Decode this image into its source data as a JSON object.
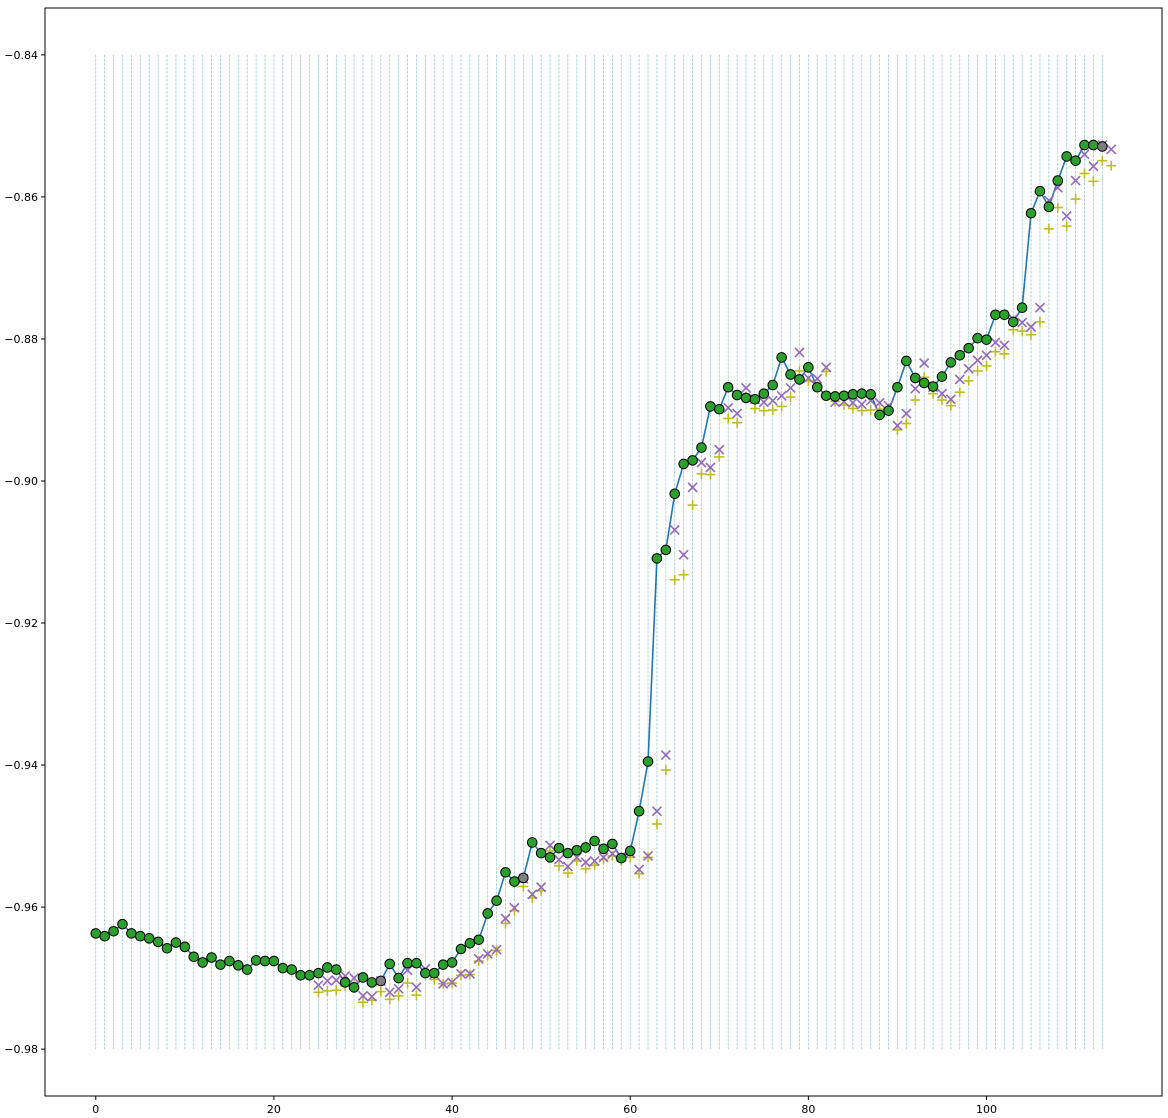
{
  "chart_data": {
    "type": "scatter",
    "title": "",
    "xlabel": "",
    "ylabel": "",
    "xlim": [
      -5.7,
      119.7
    ],
    "ylim": [
      -0.9866,
      -0.8334
    ],
    "x_ticks": [
      0,
      20,
      40,
      60,
      80,
      100
    ],
    "x_tick_labels": [
      "0",
      "20",
      "40",
      "60",
      "80",
      "100"
    ],
    "y_ticks": [
      -0.84,
      -0.86,
      -0.88,
      -0.9,
      -0.92,
      -0.94,
      -0.96,
      -0.98
    ],
    "y_tick_labels": [
      "−0.84",
      "−0.86",
      "−0.88",
      "−0.90",
      "−0.92",
      "−0.94",
      "−0.96",
      "−0.98"
    ],
    "grid": "vertical dashed lines at every integer x from 0 to 113, spanning y -0.98 to -0.84",
    "vline_range": {
      "x_start": 0,
      "x_end": 113,
      "y_low": -0.98,
      "y_high": -0.84
    },
    "colors": {
      "line": "#1f77b4",
      "circle_fill": "#2ca02c",
      "circle_gray": "#7f7f7f",
      "circle_edge": "#000000",
      "x_marker": "#9467bd",
      "plus_marker": "#bcbd22",
      "vline_a": "#2ca02c",
      "vline_b": "#9fc5e8"
    },
    "series": [
      {
        "kind": "line_circles",
        "x_start": 0,
        "values": [
          -0.9637,
          -0.9641,
          -0.9634,
          -0.9624,
          -0.9637,
          -0.9641,
          -0.9644,
          -0.9649,
          -0.9658,
          -0.965,
          -0.9656,
          -0.967,
          -0.9678,
          -0.9671,
          -0.9681,
          -0.9676,
          -0.9682,
          -0.9688,
          -0.9675,
          -0.9676,
          -0.9676,
          -0.9686,
          -0.9688,
          -0.9696,
          -0.9696,
          -0.9693,
          -0.9685,
          -0.9688,
          -0.9706,
          -0.9713,
          -0.9699,
          -0.9706,
          -0.9704,
          -0.968,
          -0.97,
          -0.9679,
          -0.9679,
          -0.9693,
          -0.9693,
          -0.9681,
          -0.9678,
          -0.9659,
          -0.9651,
          -0.9646,
          -0.9609,
          -0.9591,
          -0.9551,
          -0.9564,
          -0.9559,
          -0.9509,
          -0.9524,
          -0.953,
          -0.9517,
          -0.9524,
          -0.952,
          -0.9516,
          -0.9507,
          -0.9518,
          -0.9511,
          -0.9531,
          -0.9521,
          -0.9465,
          -0.9395,
          -0.9109,
          -0.9097,
          -0.9018,
          -0.8976,
          -0.8971,
          -0.8953,
          -0.8895,
          -0.8899,
          -0.8868,
          -0.8879,
          -0.8883,
          -0.8885,
          -0.8877,
          -0.8865,
          -0.8826,
          -0.885,
          -0.8857,
          -0.884,
          -0.8868,
          -0.888,
          -0.8881,
          -0.888,
          -0.8878,
          -0.8877,
          -0.8878,
          -0.8907,
          -0.8901,
          -0.8868,
          -0.8831,
          -0.8855,
          -0.8862,
          -0.8867,
          -0.8853,
          -0.8833,
          -0.8823,
          -0.8813,
          -0.8799,
          -0.8801,
          -0.8766,
          -0.8766,
          -0.8776,
          -0.8756,
          -0.8623,
          -0.8592,
          -0.8614,
          -0.8577,
          -0.8543,
          -0.8549,
          -0.8527,
          -0.8527,
          -0.8529
        ],
        "gray_indices": [
          32,
          48,
          113
        ]
      },
      {
        "kind": "x_markers",
        "points": [
          [
            25,
            -0.971
          ],
          [
            26,
            -0.9704
          ],
          [
            27,
            -0.9703
          ],
          [
            28,
            -0.9697
          ],
          [
            29,
            -0.97
          ],
          [
            30,
            -0.9725
          ],
          [
            31,
            -0.9726
          ],
          [
            32,
            -0.9704
          ],
          [
            33,
            -0.972
          ],
          [
            34,
            -0.9715
          ],
          [
            35,
            -0.9689
          ],
          [
            36,
            -0.9713
          ],
          [
            37,
            -0.9687
          ],
          [
            38,
            -0.9695
          ],
          [
            39,
            -0.9708
          ],
          [
            40,
            -0.9706
          ],
          [
            41,
            -0.9694
          ],
          [
            42,
            -0.9694
          ],
          [
            43,
            -0.9673
          ],
          [
            44,
            -0.9666
          ],
          [
            45,
            -0.966
          ],
          [
            46,
            -0.9616
          ],
          [
            47,
            -0.9601
          ],
          [
            48,
            -0.956
          ],
          [
            49,
            -0.9582
          ],
          [
            50,
            -0.9572
          ],
          [
            51,
            -0.9513
          ],
          [
            52,
            -0.9533
          ],
          [
            53,
            -0.9543
          ],
          [
            54,
            -0.953
          ],
          [
            55,
            -0.9537
          ],
          [
            56,
            -0.9535
          ],
          [
            57,
            -0.953
          ],
          [
            58,
            -0.9525
          ],
          [
            59,
            -0.9529
          ],
          [
            60,
            -0.9524
          ],
          [
            61,
            -0.9547
          ],
          [
            62,
            -0.9528
          ],
          [
            63,
            -0.9465
          ],
          [
            64,
            -0.9386
          ],
          [
            65,
            -0.9069
          ],
          [
            66,
            -0.9104
          ],
          [
            67,
            -0.9009
          ],
          [
            68,
            -0.8974
          ],
          [
            69,
            -0.8981
          ],
          [
            70,
            -0.8956
          ],
          [
            71,
            -0.8897
          ],
          [
            72,
            -0.8905
          ],
          [
            73,
            -0.8869
          ],
          [
            74,
            -0.8885
          ],
          [
            75,
            -0.8889
          ],
          [
            76,
            -0.8887
          ],
          [
            77,
            -0.888
          ],
          [
            78,
            -0.8869
          ],
          [
            79,
            -0.8819
          ],
          [
            80,
            -0.8855
          ],
          [
            81,
            -0.8856
          ],
          [
            82,
            -0.884
          ],
          [
            83,
            -0.8889
          ],
          [
            84,
            -0.8888
          ],
          [
            85,
            -0.889
          ],
          [
            86,
            -0.8892
          ],
          [
            87,
            -0.8887
          ],
          [
            88,
            -0.889
          ],
          [
            89,
            -0.8894
          ],
          [
            90,
            -0.8922
          ],
          [
            91,
            -0.8905
          ],
          [
            92,
            -0.887
          ],
          [
            93,
            -0.8834
          ],
          [
            94,
            -0.8868
          ],
          [
            95,
            -0.8877
          ],
          [
            96,
            -0.8885
          ],
          [
            97,
            -0.8857
          ],
          [
            98,
            -0.8842
          ],
          [
            99,
            -0.883
          ],
          [
            100,
            -0.8823
          ],
          [
            101,
            -0.8805
          ],
          [
            102,
            -0.8809
          ],
          [
            103,
            -0.8772
          ],
          [
            104,
            -0.8777
          ],
          [
            105,
            -0.8783
          ],
          [
            106,
            -0.8756
          ],
          [
            107,
            -0.8605
          ],
          [
            108,
            -0.8587
          ],
          [
            109,
            -0.8627
          ],
          [
            110,
            -0.8577
          ],
          [
            111,
            -0.854
          ],
          [
            112,
            -0.8557
          ],
          [
            113,
            -0.8527
          ],
          [
            114,
            -0.8533
          ]
        ]
      },
      {
        "kind": "plus_markers",
        "points": [
          [
            25,
            -0.972
          ],
          [
            26,
            -0.9718
          ],
          [
            27,
            -0.9717
          ],
          [
            28,
            -0.9711
          ],
          [
            29,
            -0.971
          ],
          [
            30,
            -0.9734
          ],
          [
            31,
            -0.9731
          ],
          [
            32,
            -0.9719
          ],
          [
            33,
            -0.973
          ],
          [
            34,
            -0.9725
          ],
          [
            35,
            -0.9707
          ],
          [
            36,
            -0.9724
          ],
          [
            37,
            -0.9692
          ],
          [
            38,
            -0.9702
          ],
          [
            39,
            -0.9708
          ],
          [
            40,
            -0.9707
          ],
          [
            41,
            -0.9696
          ],
          [
            42,
            -0.9695
          ],
          [
            43,
            -0.9676
          ],
          [
            44,
            -0.9668
          ],
          [
            45,
            -0.9661
          ],
          [
            46,
            -0.9623
          ],
          [
            47,
            -0.9605
          ],
          [
            48,
            -0.9571
          ],
          [
            49,
            -0.9587
          ],
          [
            50,
            -0.9577
          ],
          [
            51,
            -0.9521
          ],
          [
            52,
            -0.9542
          ],
          [
            53,
            -0.9552
          ],
          [
            54,
            -0.9535
          ],
          [
            55,
            -0.9546
          ],
          [
            56,
            -0.9541
          ],
          [
            57,
            -0.9533
          ],
          [
            58,
            -0.9528
          ],
          [
            59,
            -0.9535
          ],
          [
            60,
            -0.953
          ],
          [
            61,
            -0.9553
          ],
          [
            62,
            -0.953
          ],
          [
            63,
            -0.9483
          ],
          [
            64,
            -0.9407
          ],
          [
            65,
            -0.9139
          ],
          [
            66,
            -0.9132
          ],
          [
            67,
            -0.9034
          ],
          [
            68,
            -0.899
          ],
          [
            69,
            -0.8991
          ],
          [
            70,
            -0.8966
          ],
          [
            71,
            -0.8912
          ],
          [
            72,
            -0.8918
          ],
          [
            73,
            -0.8882
          ],
          [
            74,
            -0.8898
          ],
          [
            75,
            -0.8901
          ],
          [
            76,
            -0.89
          ],
          [
            77,
            -0.8895
          ],
          [
            78,
            -0.8882
          ],
          [
            79,
            -0.8845
          ],
          [
            80,
            -0.8859
          ],
          [
            81,
            -0.8866
          ],
          [
            82,
            -0.8846
          ],
          [
            83,
            -0.8888
          ],
          [
            84,
            -0.8893
          ],
          [
            85,
            -0.8898
          ],
          [
            86,
            -0.8901
          ],
          [
            87,
            -0.89
          ],
          [
            88,
            -0.8899
          ],
          [
            89,
            -0.8898
          ],
          [
            90,
            -0.8928
          ],
          [
            91,
            -0.8919
          ],
          [
            92,
            -0.8886
          ],
          [
            93,
            -0.8854
          ],
          [
            94,
            -0.8877
          ],
          [
            95,
            -0.8886
          ],
          [
            96,
            -0.8894
          ],
          [
            97,
            -0.8875
          ],
          [
            98,
            -0.8859
          ],
          [
            99,
            -0.8845
          ],
          [
            100,
            -0.8838
          ],
          [
            101,
            -0.8818
          ],
          [
            102,
            -0.8821
          ],
          [
            103,
            -0.8787
          ],
          [
            104,
            -0.8789
          ],
          [
            105,
            -0.8794
          ],
          [
            106,
            -0.8776
          ],
          [
            107,
            -0.8645
          ],
          [
            108,
            -0.8615
          ],
          [
            109,
            -0.8641
          ],
          [
            110,
            -0.8603
          ],
          [
            111,
            -0.8567
          ],
          [
            112,
            -0.8578
          ],
          [
            113,
            -0.8549
          ],
          [
            114,
            -0.8556
          ]
        ]
      }
    ]
  }
}
